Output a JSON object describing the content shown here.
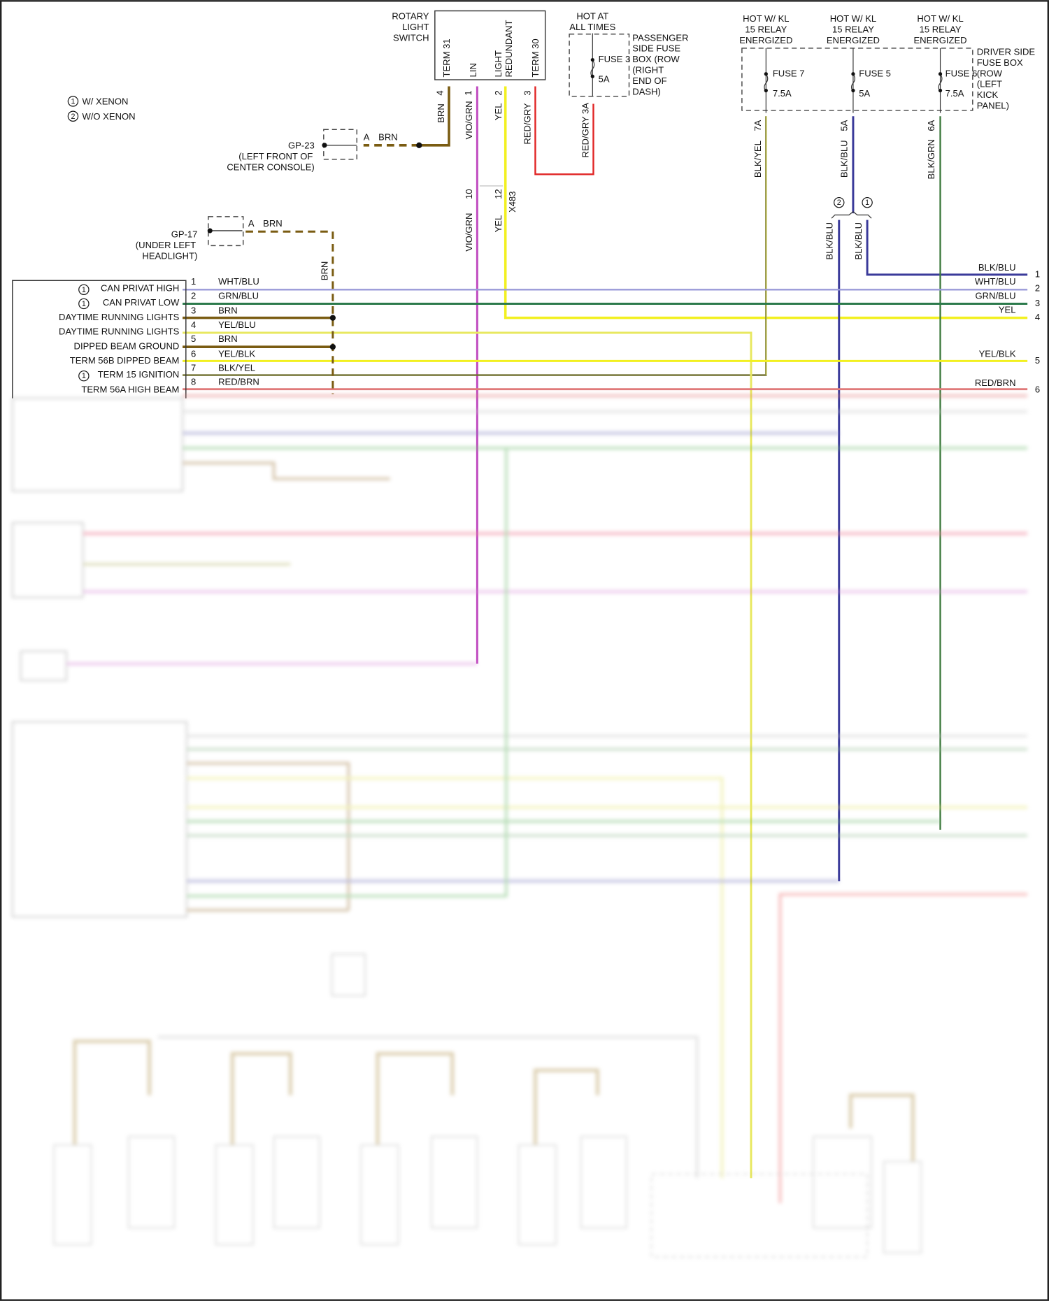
{
  "legend": [
    {
      "num": "1",
      "label": "W/ XENON"
    },
    {
      "num": "2",
      "label": "W/O XENON"
    }
  ],
  "rotary_switch": {
    "title": [
      "ROTARY",
      "LIGHT",
      "SWITCH"
    ],
    "terminals": [
      "TERM 31",
      "LIN",
      "LIGHT",
      "REDUNDANT",
      "TERM 30"
    ],
    "pins": [
      "4",
      "1",
      "2",
      "3"
    ],
    "wires": [
      "BRN",
      "VIO/GRN",
      "YEL",
      "RED/GRY"
    ]
  },
  "gp23": {
    "id": "GP-23",
    "location": [
      "(LEFT FRONT OF",
      "CENTER CONSOLE)"
    ],
    "pin": "A",
    "wire": "BRN"
  },
  "gp17": {
    "id": "GP-17",
    "location": [
      "(UNDER LEFT",
      "HEADLIGHT)"
    ],
    "pin": "A",
    "wire": "BRN",
    "down_wire": "BRN"
  },
  "passenger_fuse_box": {
    "hot": [
      "HOT AT",
      "ALL TIMES"
    ],
    "fuse": "FUSE 3",
    "amps": "5A",
    "label": [
      "PASSENGER",
      "SIDE FUSE",
      "BOX (ROW",
      "(RIGHT",
      "END OF",
      "DASH)"
    ],
    "wire": "RED/GRY 3A"
  },
  "driver_fuse_box": {
    "label": [
      "DRIVER SIDE",
      "FUSE BOX",
      "(ROW",
      "(LEFT",
      "KICK",
      "PANEL)"
    ],
    "fuses": [
      {
        "hot": [
          "HOT W/ KL",
          "15 RELAY",
          "ENERGIZED"
        ],
        "fuse": "FUSE 7",
        "amps": "7.5A",
        "pin": "7A",
        "wire": "BLK/YEL"
      },
      {
        "hot": [
          "HOT W/ KL",
          "15 RELAY",
          "ENERGIZED"
        ],
        "fuse": "FUSE 5",
        "amps": "5A",
        "pin": "5A",
        "wire": "BLK/BLU"
      },
      {
        "hot": [
          "HOT W/ KL",
          "15 RELAY",
          "ENERGIZED"
        ],
        "fuse": "FUSE 6",
        "amps": "7.5A",
        "pin": "6A",
        "wire": "BLK/GRN"
      }
    ]
  },
  "x483": {
    "name": "X483",
    "pins": [
      "10",
      "12"
    ],
    "wires": [
      "VIO/GRN",
      "YEL"
    ]
  },
  "splice": {
    "options": [
      "2",
      "1"
    ],
    "wires": [
      "BLK/BLU",
      "BLK/BLU"
    ]
  },
  "left_connector": {
    "pins": [
      {
        "num": "1",
        "note": "1",
        "label": "CAN PRIVAT HIGH",
        "wire": "WHT/BLU"
      },
      {
        "num": "2",
        "note": "1",
        "label": "CAN PRIVAT LOW",
        "wire": "GRN/BLU"
      },
      {
        "num": "3",
        "label": "DAYTIME RUNNING LIGHTS",
        "wire": "BRN"
      },
      {
        "num": "4",
        "label": "DAYTIME RUNNING LIGHTS",
        "wire": "YEL/BLU"
      },
      {
        "num": "5",
        "label": "DIPPED BEAM GROUND",
        "wire": "BRN"
      },
      {
        "num": "6",
        "label": "TERM 56B DIPPED BEAM",
        "wire": "YEL/BLK"
      },
      {
        "num": "7",
        "note": "1",
        "label": "TERM 15 IGNITION",
        "wire": "BLK/YEL"
      },
      {
        "num": "8",
        "label": "TERM 56A HIGH BEAM",
        "wire": "RED/BRN"
      }
    ]
  },
  "right_connector": {
    "pins": [
      {
        "num": "1",
        "wire": "BLK/BLU"
      },
      {
        "num": "2",
        "wire": "WHT/BLU"
      },
      {
        "num": "3",
        "wire": "GRN/BLU"
      },
      {
        "num": "4",
        "wire": "YEL"
      },
      {
        "num": "5",
        "wire": "YEL/BLK"
      },
      {
        "num": "6",
        "wire": "RED/BRN"
      }
    ]
  },
  "colors": {
    "BRN": "#7a5c12",
    "VIO_GRN": "#c04cc0",
    "YEL": "#f2f020",
    "RED": "#e02424",
    "BLK_YEL": "#6e6e2c",
    "BLK_BLU": "#3a3a9a",
    "BLK_GRN": "#3f7a3f",
    "WHT_BLU": "#9a9ad8",
    "GRN_BLU": "#2b7a4b",
    "RED_BRN": "#e07a7a"
  }
}
